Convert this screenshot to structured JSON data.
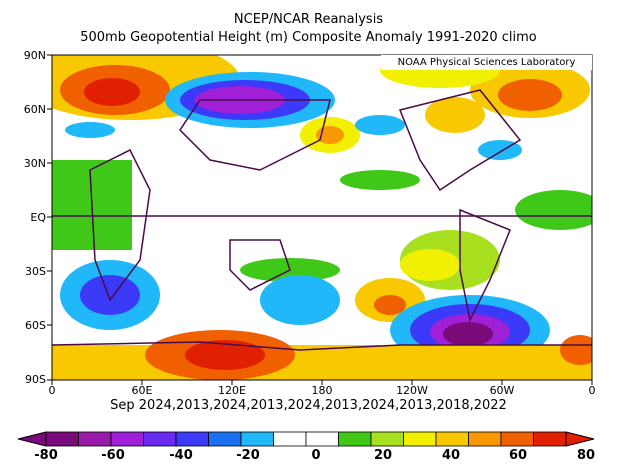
{
  "title_line1": "NCEP/NCAR Reanalysis",
  "title_line2": "500mb Geopotential Height (m) Composite Anomaly 1991-2020 climo",
  "credit": "NOAA Physical Sciences Laboratory",
  "date_line": "Sep 2024,2013,2024,2013,2024,2013,2024,2013,2018,2022",
  "lat_labels": [
    "90N",
    "60N",
    "30N",
    "EQ",
    "30S",
    "60S",
    "90S"
  ],
  "lon_labels": [
    "0",
    "60E",
    "120E",
    "180",
    "120W",
    "60W",
    "0"
  ],
  "colorbar_labels": [
    "-80",
    "-60",
    "-40",
    "-20",
    "0",
    "20",
    "40",
    "60",
    "80"
  ],
  "colorbar_colors": [
    "#7a0a7a",
    "#9a1aaa",
    "#a020d8",
    "#6a2af0",
    "#3a3af8",
    "#1a70f0",
    "#20b8f8",
    "#ffffff",
    "#ffffff",
    "#40c818",
    "#a8e020",
    "#f0f000",
    "#f8c800",
    "#f89800",
    "#f06000",
    "#e02000"
  ]
}
